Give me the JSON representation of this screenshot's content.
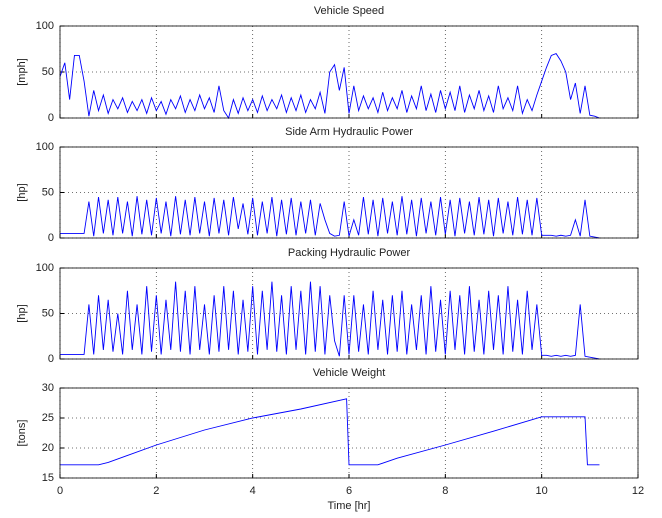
{
  "chart_data": [
    {
      "type": "line",
      "title": "Vehicle Speed",
      "ylabel": "[mph]",
      "color": "#0000ff",
      "grid": true,
      "xlim": [
        0,
        12
      ],
      "xticks": [
        0,
        2,
        4,
        6,
        8,
        10,
        12
      ],
      "ylim": [
        0,
        100
      ],
      "yticks": [
        0,
        50,
        100
      ],
      "x": [
        0,
        0.1,
        0.2,
        0.3,
        0.4,
        0.5,
        0.6,
        0.7,
        0.8,
        0.9,
        1,
        1.1,
        1.2,
        1.3,
        1.4,
        1.5,
        1.6,
        1.7,
        1.8,
        1.9,
        2,
        2.1,
        2.2,
        2.3,
        2.4,
        2.5,
        2.6,
        2.7,
        2.8,
        2.9,
        3,
        3.1,
        3.2,
        3.3,
        3.4,
        3.5,
        3.6,
        3.7,
        3.8,
        3.9,
        4,
        4.1,
        4.2,
        4.3,
        4.4,
        4.5,
        4.6,
        4.7,
        4.8,
        4.9,
        5,
        5.1,
        5.2,
        5.3,
        5.4,
        5.5,
        5.6,
        5.7,
        5.8,
        5.9,
        6,
        6.1,
        6.2,
        6.3,
        6.4,
        6.5,
        6.6,
        6.7,
        6.8,
        6.9,
        7,
        7.1,
        7.2,
        7.3,
        7.4,
        7.5,
        7.6,
        7.7,
        7.8,
        7.9,
        8,
        8.1,
        8.2,
        8.3,
        8.4,
        8.5,
        8.6,
        8.7,
        8.8,
        8.9,
        9,
        9.1,
        9.2,
        9.3,
        9.4,
        9.5,
        9.6,
        9.7,
        9.8,
        9.9,
        10,
        10.1,
        10.2,
        10.3,
        10.4,
        10.5,
        10.6,
        10.7,
        10.8,
        10.9,
        11,
        11.1,
        11.2
      ],
      "values": [
        45,
        60,
        20,
        68,
        68,
        40,
        2,
        30,
        8,
        25,
        5,
        20,
        10,
        22,
        6,
        18,
        8,
        20,
        5,
        22,
        8,
        18,
        4,
        20,
        10,
        24,
        6,
        20,
        8,
        25,
        10,
        22,
        6,
        35,
        8,
        0,
        20,
        5,
        22,
        8,
        20,
        6,
        24,
        8,
        20,
        10,
        25,
        6,
        22,
        8,
        25,
        6,
        20,
        10,
        28,
        5,
        50,
        58,
        30,
        55,
        5,
        35,
        8,
        24,
        10,
        22,
        6,
        28,
        8,
        22,
        10,
        30,
        6,
        24,
        10,
        35,
        8,
        26,
        6,
        30,
        10,
        28,
        8,
        35,
        6,
        25,
        10,
        30,
        8,
        24,
        6,
        35,
        10,
        22,
        8,
        35,
        5,
        20,
        8,
        25,
        40,
        55,
        68,
        70,
        62,
        50,
        20,
        38,
        5,
        35,
        3,
        2,
        0
      ]
    },
    {
      "type": "line",
      "title": "Side Arm Hydraulic Power",
      "ylabel": "[hp]",
      "color": "#0000ff",
      "grid": true,
      "xlim": [
        0,
        12
      ],
      "xticks": [
        0,
        2,
        4,
        6,
        8,
        10,
        12
      ],
      "ylim": [
        0,
        100
      ],
      "yticks": [
        0,
        50,
        100
      ],
      "x": [
        0,
        0.1,
        0.2,
        0.3,
        0.4,
        0.5,
        0.6,
        0.7,
        0.8,
        0.9,
        1,
        1.1,
        1.2,
        1.3,
        1.4,
        1.5,
        1.6,
        1.7,
        1.8,
        1.9,
        2,
        2.1,
        2.2,
        2.3,
        2.4,
        2.5,
        2.6,
        2.7,
        2.8,
        2.9,
        3,
        3.1,
        3.2,
        3.3,
        3.4,
        3.5,
        3.6,
        3.7,
        3.8,
        3.9,
        4,
        4.1,
        4.2,
        4.3,
        4.4,
        4.5,
        4.6,
        4.7,
        4.8,
        4.9,
        5,
        5.1,
        5.2,
        5.3,
        5.4,
        5.5,
        5.6,
        5.7,
        5.8,
        5.9,
        6,
        6.1,
        6.2,
        6.3,
        6.4,
        6.5,
        6.6,
        6.7,
        6.8,
        6.9,
        7,
        7.1,
        7.2,
        7.3,
        7.4,
        7.5,
        7.6,
        7.7,
        7.8,
        7.9,
        8,
        8.1,
        8.2,
        8.3,
        8.4,
        8.5,
        8.6,
        8.7,
        8.8,
        8.9,
        9,
        9.1,
        9.2,
        9.3,
        9.4,
        9.5,
        9.6,
        9.7,
        9.8,
        9.9,
        10,
        10.1,
        10.2,
        10.3,
        10.4,
        10.5,
        10.6,
        10.7,
        10.8,
        10.9,
        11,
        11.1,
        11.2
      ],
      "values": [
        5,
        5,
        5,
        5,
        5,
        5,
        40,
        2,
        45,
        5,
        42,
        3,
        45,
        5,
        40,
        2,
        46,
        4,
        42,
        3,
        44,
        5,
        40,
        2,
        46,
        4,
        42,
        3,
        45,
        5,
        40,
        2,
        44,
        5,
        42,
        3,
        45,
        10,
        38,
        4,
        44,
        3,
        40,
        5,
        45,
        2,
        42,
        4,
        44,
        3,
        40,
        5,
        42,
        3,
        38,
        20,
        5,
        2,
        3,
        40,
        2,
        20,
        3,
        45,
        4,
        42,
        2,
        44,
        5,
        40,
        3,
        46,
        4,
        42,
        2,
        44,
        5,
        40,
        3,
        45,
        4,
        42,
        2,
        44,
        5,
        40,
        3,
        45,
        4,
        42,
        2,
        44,
        5,
        40,
        3,
        45,
        4,
        42,
        3,
        44,
        3,
        3,
        3,
        2,
        3,
        2,
        3,
        20,
        2,
        42,
        2,
        1,
        0
      ]
    },
    {
      "type": "line",
      "title": "Packing Hydraulic Power",
      "ylabel": "[hp]",
      "color": "#0000ff",
      "grid": true,
      "xlim": [
        0,
        12
      ],
      "xticks": [
        0,
        2,
        4,
        6,
        8,
        10,
        12
      ],
      "ylim": [
        0,
        100
      ],
      "yticks": [
        0,
        50,
        100
      ],
      "x": [
        0,
        0.1,
        0.2,
        0.3,
        0.4,
        0.5,
        0.6,
        0.7,
        0.8,
        0.9,
        1,
        1.1,
        1.2,
        1.3,
        1.4,
        1.5,
        1.6,
        1.7,
        1.8,
        1.9,
        2,
        2.1,
        2.2,
        2.3,
        2.4,
        2.5,
        2.6,
        2.7,
        2.8,
        2.9,
        3,
        3.1,
        3.2,
        3.3,
        3.4,
        3.5,
        3.6,
        3.7,
        3.8,
        3.9,
        4,
        4.1,
        4.2,
        4.3,
        4.4,
        4.5,
        4.6,
        4.7,
        4.8,
        4.9,
        5,
        5.1,
        5.2,
        5.3,
        5.4,
        5.5,
        5.6,
        5.7,
        5.8,
        5.9,
        6,
        6.1,
        6.2,
        6.3,
        6.4,
        6.5,
        6.6,
        6.7,
        6.8,
        6.9,
        7,
        7.1,
        7.2,
        7.3,
        7.4,
        7.5,
        7.6,
        7.7,
        7.8,
        7.9,
        8,
        8.1,
        8.2,
        8.3,
        8.4,
        8.5,
        8.6,
        8.7,
        8.8,
        8.9,
        9,
        9.1,
        9.2,
        9.3,
        9.4,
        9.5,
        9.6,
        9.7,
        9.8,
        9.9,
        10,
        10.1,
        10.2,
        10.3,
        10.4,
        10.5,
        10.6,
        10.7,
        10.8,
        10.9,
        11,
        11.1,
        11.2
      ],
      "values": [
        5,
        5,
        5,
        5,
        5,
        5,
        60,
        5,
        70,
        10,
        65,
        8,
        50,
        5,
        75,
        10,
        60,
        5,
        80,
        8,
        70,
        5,
        65,
        10,
        85,
        8,
        75,
        5,
        80,
        10,
        60,
        5,
        70,
        8,
        80,
        10,
        75,
        5,
        65,
        8,
        80,
        5,
        75,
        10,
        85,
        8,
        70,
        5,
        80,
        10,
        75,
        5,
        85,
        8,
        80,
        5,
        70,
        20,
        3,
        70,
        5,
        70,
        8,
        60,
        5,
        75,
        10,
        65,
        5,
        70,
        8,
        75,
        5,
        60,
        10,
        70,
        5,
        80,
        8,
        65,
        5,
        75,
        10,
        70,
        5,
        80,
        8,
        65,
        5,
        75,
        10,
        70,
        5,
        80,
        8,
        65,
        5,
        75,
        10,
        60,
        4,
        4,
        3,
        4,
        3,
        4,
        3,
        4,
        60,
        3,
        2,
        1,
        0
      ]
    },
    {
      "type": "line",
      "title": "Vehicle Weight",
      "ylabel": "[tons]",
      "xlabel": "Time [hr]",
      "color": "#0000ff",
      "grid": true,
      "xlim": [
        0,
        12
      ],
      "xticks": [
        0,
        2,
        4,
        6,
        8,
        10,
        12
      ],
      "ylim": [
        15,
        30
      ],
      "yticks": [
        15,
        20,
        25,
        30
      ],
      "x": [
        0,
        0.8,
        1,
        2,
        3,
        4,
        5,
        5.95,
        6,
        6.6,
        7,
        8,
        9,
        10,
        10.9,
        10.95,
        11.2
      ],
      "values": [
        17.2,
        17.2,
        17.6,
        20.5,
        23,
        25,
        26.5,
        28.2,
        17.2,
        17.2,
        18.3,
        20.5,
        22.8,
        25.2,
        25.2,
        17.2,
        17.2
      ]
    }
  ]
}
